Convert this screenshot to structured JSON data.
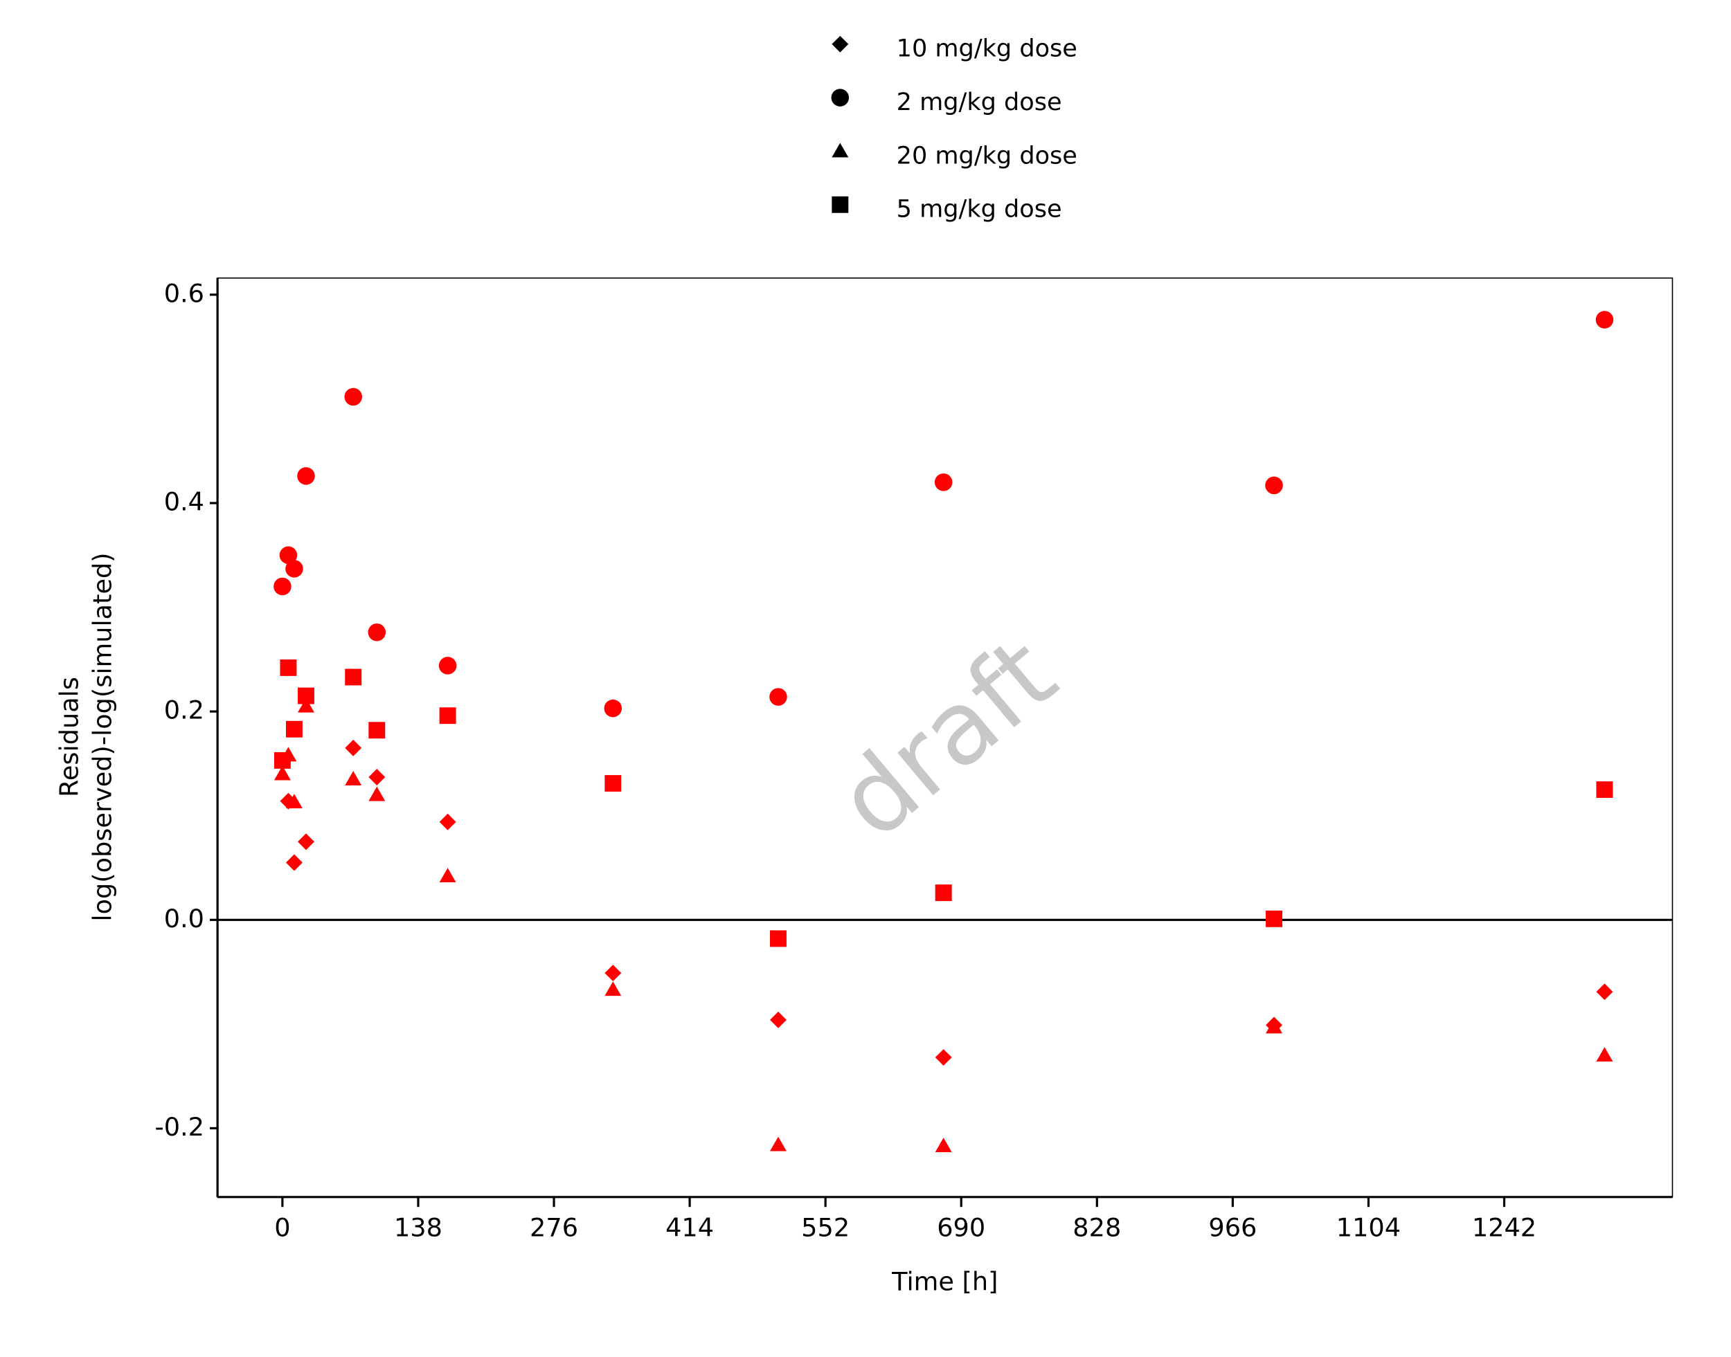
{
  "chart_data": {
    "type": "scatter",
    "x_label": "Time [h]",
    "y_label": [
      "Residuals",
      "log(observed)-log(simulated)"
    ],
    "watermark": "draft",
    "x": [
      0,
      6,
      12,
      24,
      72,
      96,
      168,
      336,
      504,
      672,
      1008,
      1344
    ],
    "series": [
      {
        "name": "10 mg/kg dose",
        "marker": "diamond",
        "color": "#ff0000",
        "values": [
          null,
          0.114,
          0.055,
          0.075,
          0.165,
          0.137,
          0.094,
          -0.051,
          -0.096,
          -0.132,
          -0.101,
          -0.069
        ]
      },
      {
        "name": "2 mg/kg dose",
        "marker": "circle",
        "color": "#ff0000",
        "values": [
          0.32,
          0.35,
          0.337,
          0.426,
          0.502,
          0.276,
          0.244,
          0.203,
          0.214,
          0.42,
          0.417,
          0.576
        ]
      },
      {
        "name": "20 mg/kg dose",
        "marker": "triangle",
        "color": "#ff0000",
        "values": [
          0.14,
          0.158,
          0.113,
          0.205,
          0.135,
          0.12,
          0.042,
          -0.067,
          -0.216,
          -0.217,
          -0.103,
          -0.13
        ]
      },
      {
        "name": "5 mg/kg dose",
        "marker": "square",
        "color": "#ff0000",
        "values": [
          0.153,
          0.242,
          0.183,
          0.215,
          0.233,
          0.182,
          0.196,
          0.131,
          -0.018,
          0.026,
          0.001,
          0.125
        ]
      }
    ],
    "legend_marker_color": "#000000",
    "legend_position": "top",
    "reference_line": 0,
    "xlim": [
      -66,
      1413
    ],
    "ylim": [
      -0.266,
      0.616
    ],
    "xticks": [
      0,
      138,
      276,
      414,
      552,
      690,
      828,
      966,
      1104,
      1242
    ],
    "yticks": [
      {
        "value": 0.6,
        "label": "0.6"
      },
      {
        "value": 0.4,
        "label": "0.4"
      },
      {
        "value": 0.2,
        "label": "0.2"
      },
      {
        "value": 0,
        "label": "0.0"
      },
      {
        "value": -0.2,
        "label": "-0.2"
      }
    ],
    "grid": false
  }
}
